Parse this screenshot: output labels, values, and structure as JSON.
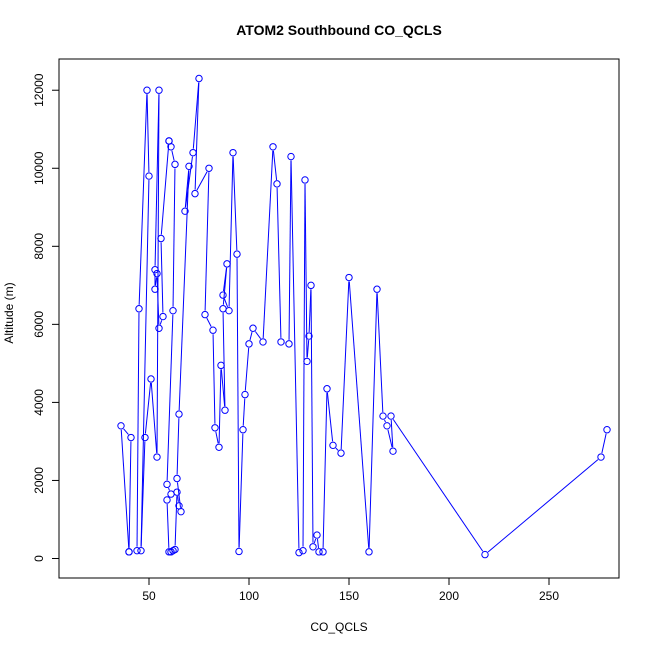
{
  "chart_data": {
    "type": "scatter",
    "title": "ATOM2 Southbound CO_QCLS",
    "xlabel": "CO_QCLS",
    "ylabel": "Altitude (m)",
    "xlim": [
      5,
      285
    ],
    "ylim": [
      -500,
      12800
    ],
    "x_ticks": [
      50,
      100,
      150,
      200,
      250
    ],
    "y_ticks": [
      0,
      2000,
      4000,
      6000,
      8000,
      10000,
      12000
    ],
    "grid": false,
    "line_color": "#0000ff",
    "marker": "open-circle",
    "series": [
      {
        "x": [
          40,
          36,
          41,
          40,
          44,
          45,
          49,
          50,
          46,
          48,
          51,
          54,
          55,
          53,
          53,
          54,
          55,
          57,
          56,
          60,
          60,
          61,
          63,
          62,
          59,
          61,
          59,
          60,
          61,
          62,
          63,
          64,
          65,
          66,
          64,
          65,
          70,
          68,
          72,
          75,
          73,
          80,
          78,
          82,
          83,
          85,
          86,
          88,
          87,
          89,
          87,
          90,
          92,
          94,
          95,
          97,
          98,
          100,
          102,
          107,
          112,
          114,
          116,
          120,
          121,
          125,
          127,
          128,
          129,
          130,
          131,
          132,
          134,
          135,
          137,
          139,
          142,
          146,
          150,
          160,
          164,
          167,
          169,
          172,
          171,
          218,
          276,
          279
        ],
        "y": [
          170,
          3400,
          3100,
          170,
          200,
          6400,
          12000,
          9800,
          200,
          3100,
          4600,
          2600,
          12000,
          7400,
          6900,
          7300,
          5900,
          6200,
          8200,
          10700,
          10700,
          10550,
          10100,
          6350,
          1900,
          1650,
          1500,
          170,
          170,
          200,
          230,
          1700,
          1350,
          1200,
          2050,
          3700,
          10050,
          8900,
          10400,
          12300,
          9350,
          10000,
          6250,
          5850,
          3350,
          2850,
          4950,
          3800,
          6400,
          7550,
          6750,
          6350,
          10400,
          7800,
          180,
          3300,
          4200,
          5500,
          5900,
          5550,
          10550,
          9600,
          5550,
          5500,
          10300,
          150,
          200,
          9700,
          5050,
          5700,
          7000,
          300,
          600,
          170,
          170,
          4350,
          2900,
          2700,
          7200,
          170,
          6900,
          3650,
          3400,
          2750,
          3650,
          100,
          2600,
          3300
        ]
      }
    ]
  }
}
